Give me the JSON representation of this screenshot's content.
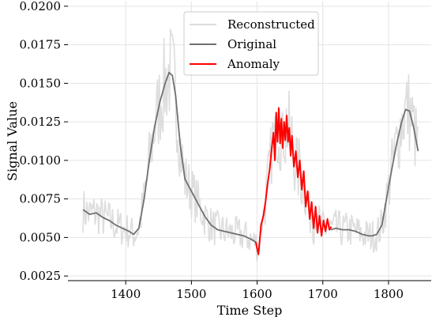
{
  "chart_data": {
    "type": "line",
    "xlabel": "Time Step",
    "ylabel": "Signal Value",
    "xlim": [
      1312,
      1865
    ],
    "ylim": [
      0.0022,
      0.0203
    ],
    "xticks": [
      1400,
      1500,
      1600,
      1700,
      1800
    ],
    "xtick_labels": [
      "1400",
      "1500",
      "1600",
      "1700",
      "1800"
    ],
    "yticks": [
      0.0025,
      0.005,
      0.0075,
      0.01,
      0.0125,
      0.015,
      0.0175,
      0.02
    ],
    "ytick_labels": [
      "0.0025",
      "0.0050",
      "0.0075",
      "0.0100",
      "0.0125",
      "0.0150",
      "0.0175",
      "0.0200"
    ],
    "grid": true,
    "legend_position": "top-center",
    "legend": [
      {
        "label": "Reconstructed",
        "color": "#dddddd"
      },
      {
        "label": "Original",
        "color": "#707070"
      },
      {
        "label": "Anomaly",
        "color": "#ff0000"
      }
    ],
    "series": [
      {
        "name": "Original",
        "color": "#707070",
        "x": [
          1335,
          1345,
          1355,
          1365,
          1375,
          1385,
          1395,
          1405,
          1412,
          1420,
          1428,
          1436,
          1444,
          1452,
          1460,
          1466,
          1471,
          1476,
          1483,
          1490,
          1500,
          1510,
          1520,
          1530,
          1540,
          1550,
          1560,
          1570,
          1580,
          1590,
          1598
        ],
        "y": [
          0.0068,
          0.0065,
          0.0066,
          0.0063,
          0.0061,
          0.0058,
          0.0056,
          0.0054,
          0.0052,
          0.0056,
          0.0075,
          0.01,
          0.0122,
          0.0138,
          0.015,
          0.0157,
          0.0155,
          0.0142,
          0.011,
          0.0088,
          0.008,
          0.0072,
          0.0064,
          0.0058,
          0.0055,
          0.0054,
          0.0053,
          0.0052,
          0.0051,
          0.0049,
          0.0047
        ]
      },
      {
        "name": "Original",
        "color": "#707070",
        "x": [
          1712,
          1720,
          1730,
          1740,
          1750,
          1760,
          1770,
          1775,
          1782,
          1790,
          1797,
          1804,
          1812,
          1820,
          1826,
          1832,
          1838,
          1845
        ],
        "y": [
          0.0055,
          0.0056,
          0.0055,
          0.0055,
          0.0054,
          0.0052,
          0.0051,
          0.0051,
          0.0052,
          0.0058,
          0.0075,
          0.0092,
          0.011,
          0.0125,
          0.0133,
          0.0132,
          0.0122,
          0.0106
        ]
      },
      {
        "name": "Anomaly",
        "color": "#ff0000",
        "x": [
          1598,
          1602,
          1606,
          1610,
          1613,
          1616,
          1619,
          1622,
          1625,
          1627,
          1629,
          1631,
          1633,
          1635,
          1637,
          1639,
          1641,
          1643,
          1645,
          1647,
          1649,
          1651,
          1653,
          1656,
          1659,
          1662,
          1665,
          1668,
          1671,
          1674,
          1677,
          1680,
          1683,
          1686,
          1689,
          1692,
          1695,
          1698,
          1701,
          1704,
          1707,
          1710,
          1713
        ],
        "y": [
          0.0047,
          0.0039,
          0.0058,
          0.0065,
          0.0074,
          0.0085,
          0.0094,
          0.0107,
          0.0118,
          0.01,
          0.0131,
          0.0112,
          0.0134,
          0.0111,
          0.0127,
          0.0108,
          0.0125,
          0.0113,
          0.0129,
          0.0112,
          0.0121,
          0.0103,
          0.0116,
          0.0096,
          0.0106,
          0.0089,
          0.01,
          0.0081,
          0.0093,
          0.007,
          0.008,
          0.0062,
          0.0073,
          0.0056,
          0.007,
          0.0053,
          0.0064,
          0.0051,
          0.0061,
          0.0054,
          0.0062,
          0.0055,
          0.0057
        ]
      }
    ]
  }
}
